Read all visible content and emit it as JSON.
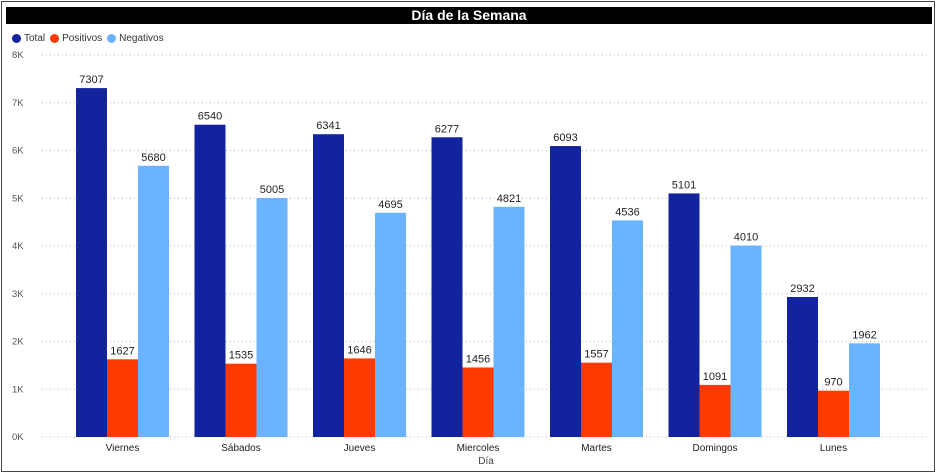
{
  "title": "Día de la Semana",
  "legend": [
    {
      "label": "Total",
      "color": "#12239E"
    },
    {
      "label": "Positivos",
      "color": "#FF3A00"
    },
    {
      "label": "Negativos",
      "color": "#6AB4FF"
    }
  ],
  "chart_data": {
    "type": "bar",
    "title": "Día de la Semana",
    "xlabel": "Día",
    "ylabel": "",
    "ylim": [
      0,
      8000
    ],
    "y_ticks": [
      "0K",
      "1K",
      "2K",
      "3K",
      "4K",
      "5K",
      "6K",
      "7K",
      "8K"
    ],
    "grid": true,
    "legend_position": "top-left",
    "categories": [
      "Viernes",
      "Sábados",
      "Jueves",
      "Miercoles",
      "Martes",
      "Domingos",
      "Lunes"
    ],
    "series": [
      {
        "name": "Total",
        "color": "#12239E",
        "values": [
          7307,
          6540,
          6341,
          6277,
          6093,
          5101,
          2932
        ]
      },
      {
        "name": "Positivos",
        "color": "#FF3A00",
        "values": [
          1627,
          1535,
          1646,
          1456,
          1557,
          1091,
          970
        ]
      },
      {
        "name": "Negativos",
        "color": "#6AB4FF",
        "values": [
          5680,
          5005,
          4695,
          4821,
          4536,
          4010,
          1962
        ]
      }
    ]
  }
}
